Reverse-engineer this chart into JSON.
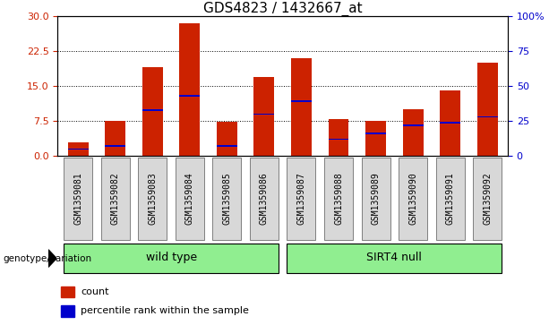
{
  "title": "GDS4823 / 1432667_at",
  "samples": [
    "GSM1359081",
    "GSM1359082",
    "GSM1359083",
    "GSM1359084",
    "GSM1359085",
    "GSM1359086",
    "GSM1359087",
    "GSM1359088",
    "GSM1359089",
    "GSM1359090",
    "GSM1359091",
    "GSM1359092"
  ],
  "count_values": [
    3.0,
    7.5,
    19.0,
    28.5,
    7.3,
    17.0,
    21.0,
    8.0,
    7.5,
    10.0,
    14.0,
    20.0
  ],
  "percentile_values": [
    5,
    7,
    33,
    43,
    7,
    30,
    39,
    12,
    16,
    22,
    24,
    28
  ],
  "group_ranges": [
    {
      "name": "wild type",
      "start": 0,
      "end": 5,
      "color": "#90EE90"
    },
    {
      "name": "SIRT4 null",
      "start": 6,
      "end": 11,
      "color": "#90EE90"
    }
  ],
  "bar_color": "#CC2200",
  "blue_color": "#0000CC",
  "left_axis_color": "#CC2200",
  "right_axis_color": "#0000CC",
  "ylim_left": [
    0,
    30
  ],
  "ylim_right": [
    0,
    100
  ],
  "yticks_left": [
    0,
    7.5,
    15,
    22.5,
    30
  ],
  "yticks_right": [
    0,
    25,
    50,
    75,
    100
  ],
  "grid_color": "#000000",
  "background_color": "#ffffff",
  "bar_width": 0.55,
  "legend_count_label": "count",
  "legend_pct_label": "percentile rank within the sample",
  "group_row_label": "genotype/variation",
  "title_fontsize": 11,
  "tick_fontsize": 8,
  "label_fontsize": 7
}
